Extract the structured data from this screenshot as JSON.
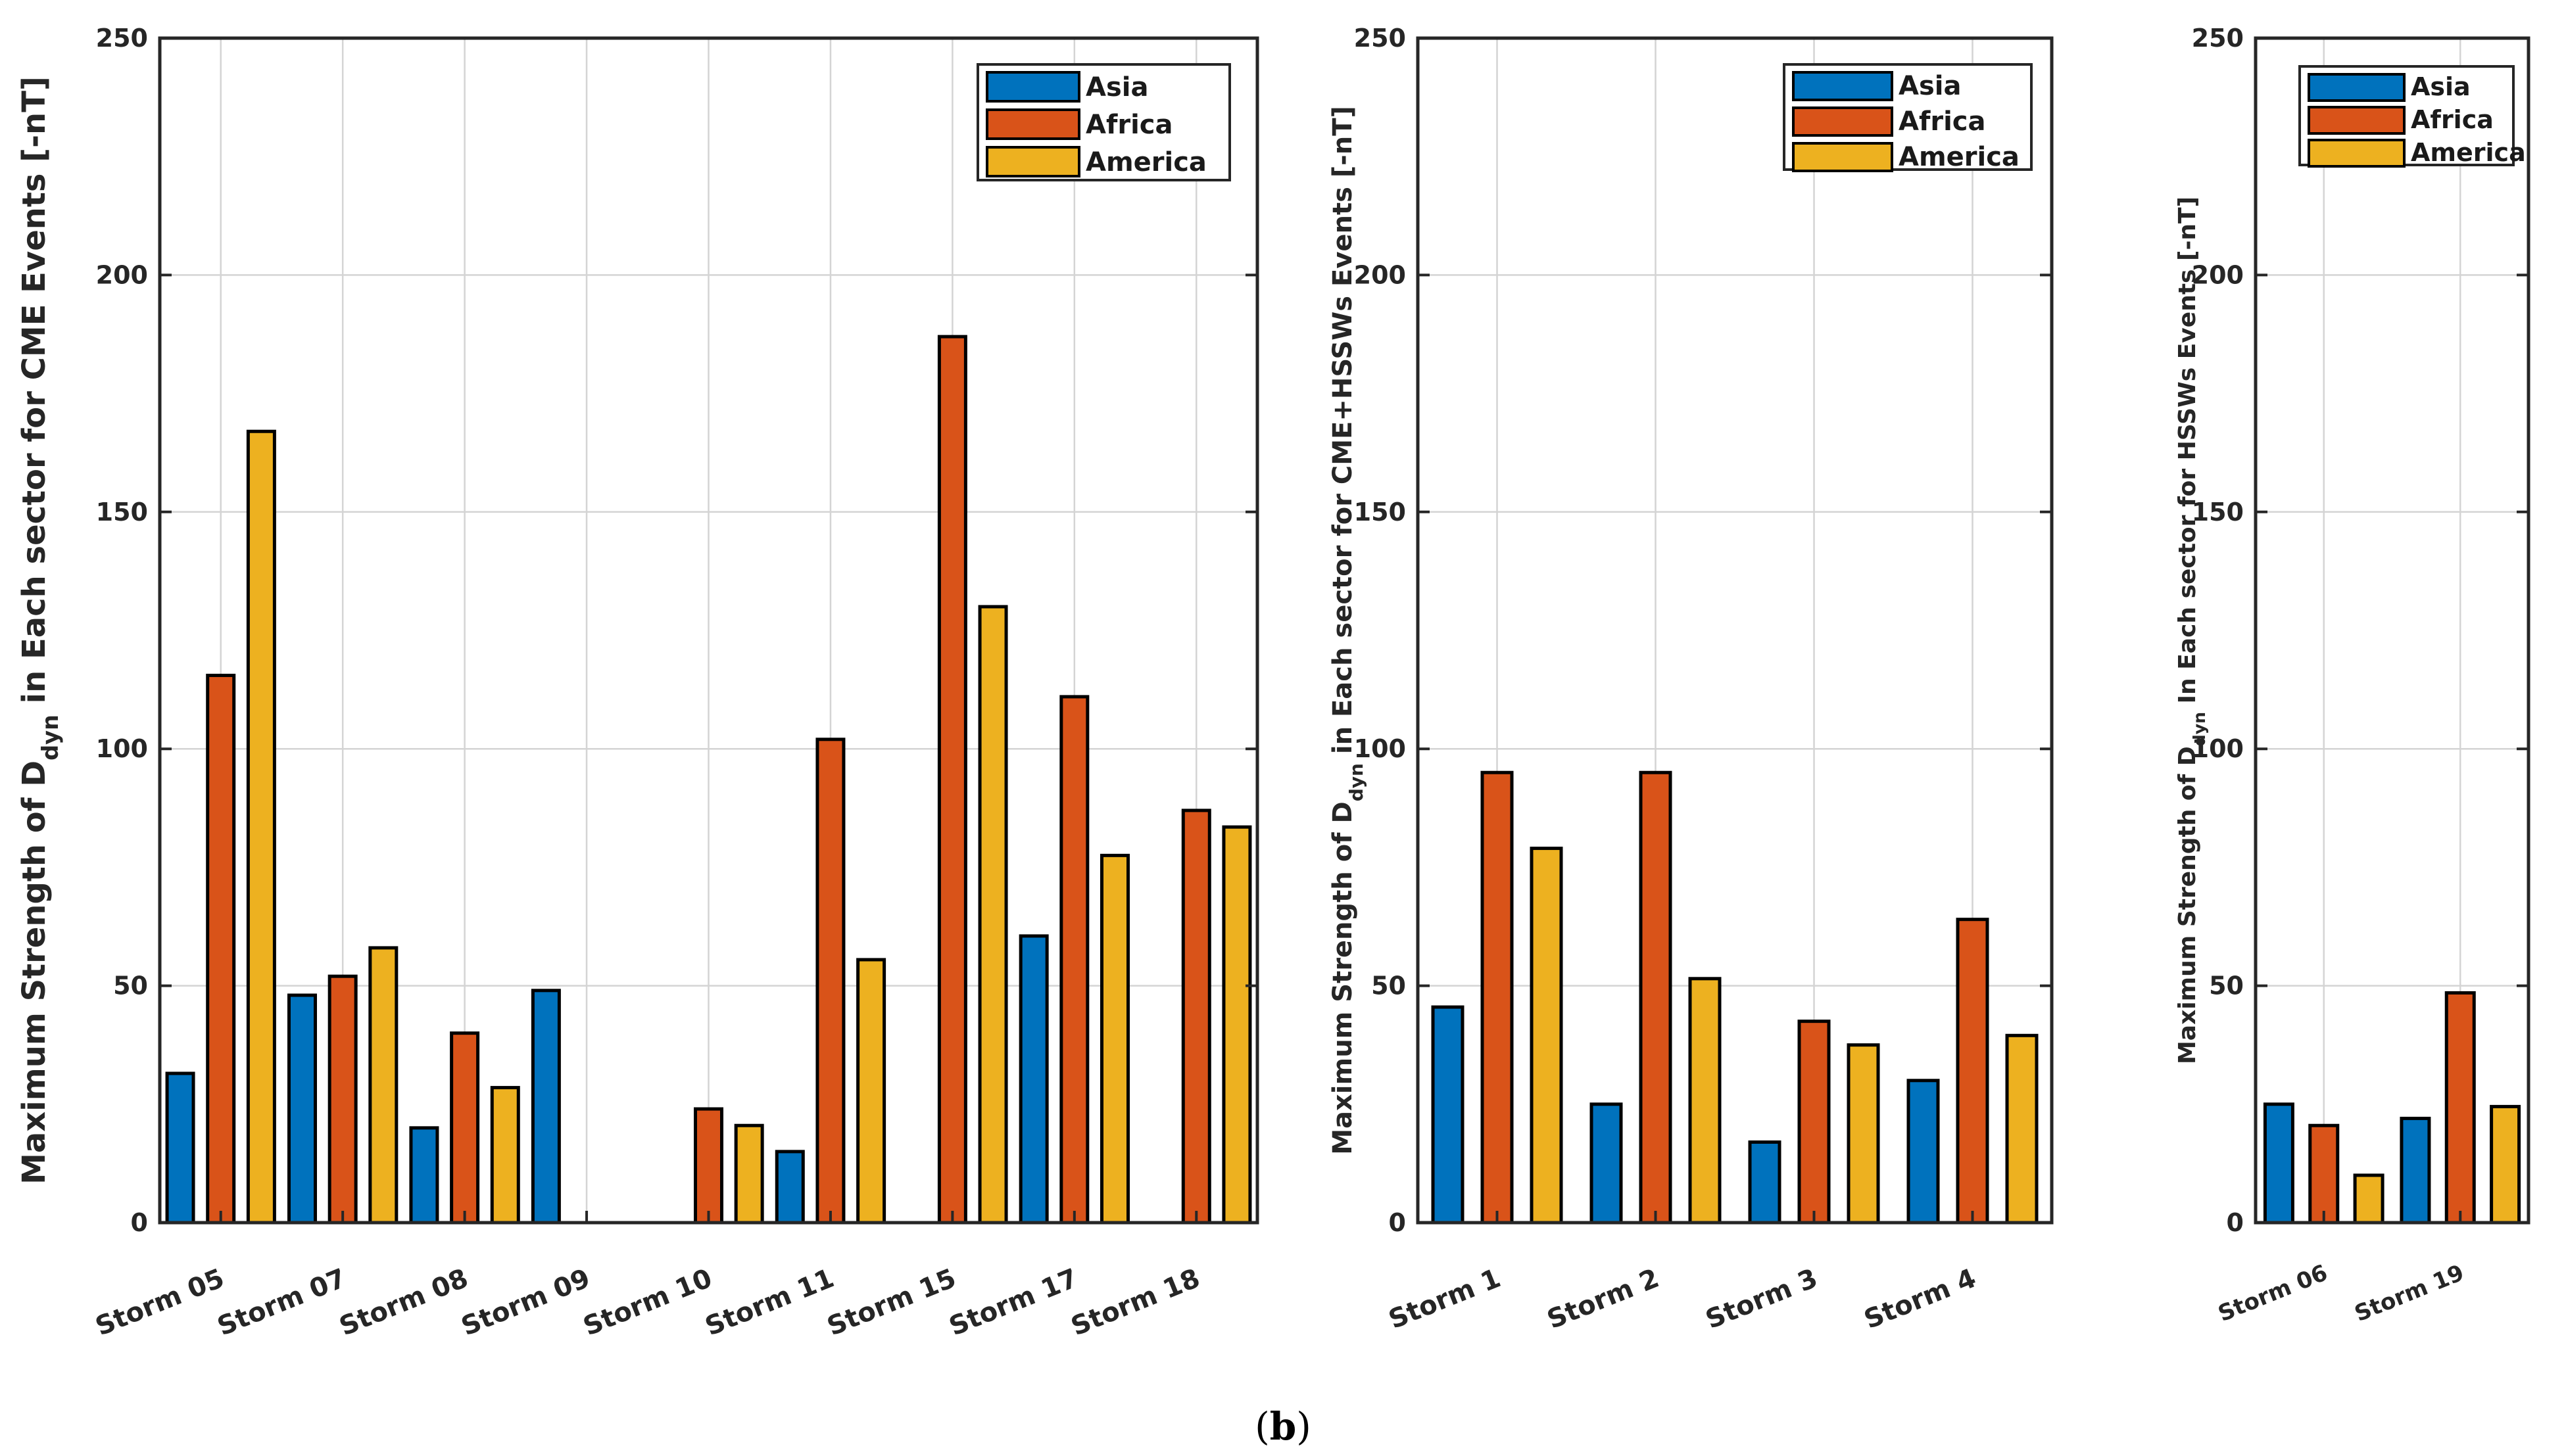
{
  "caption": {
    "open": "(",
    "letter": "b",
    "close": ")"
  },
  "colors": {
    "Asia": "#0072BD",
    "Africa": "#D95319",
    "America": "#EDB120"
  },
  "chart_data": [
    {
      "type": "bar",
      "categories": [
        "Storm 05",
        "Storm 07",
        "Storm 08",
        "Storm 09",
        "Storm 10",
        "Storm 11",
        "Storm 15",
        "Storm 17",
        "Storm 18"
      ],
      "series": [
        {
          "name": "Asia",
          "values": [
            31.5,
            48,
            20,
            49,
            0,
            15,
            0,
            60.5,
            0
          ]
        },
        {
          "name": "Africa",
          "values": [
            115.5,
            52,
            40,
            0,
            24,
            102,
            187,
            111,
            87
          ]
        },
        {
          "name": "America",
          "values": [
            167,
            58,
            28.5,
            0,
            20.5,
            55.5,
            130,
            77.5,
            83.5
          ]
        }
      ],
      "ylabel_parts": {
        "pre": "Maximum Strength of D",
        "sub": "dyn",
        "post": " in Each sector for CME Events [-nT]"
      },
      "ylim": [
        0,
        250
      ],
      "yticks": [
        0,
        50,
        100,
        150,
        200,
        250
      ],
      "legend": [
        "Asia",
        "Africa",
        "America"
      ],
      "legend_position": "top-right",
      "grid": true
    },
    {
      "type": "bar",
      "categories": [
        "Storm 1",
        "Storm 2",
        "Storm 3",
        "Storm 4"
      ],
      "series": [
        {
          "name": "Asia",
          "values": [
            45.5,
            25,
            17,
            30
          ]
        },
        {
          "name": "Africa",
          "values": [
            95,
            95,
            42.5,
            64
          ]
        },
        {
          "name": "America",
          "values": [
            79,
            51.5,
            37.5,
            39.5
          ]
        }
      ],
      "ylabel_parts": {
        "pre": "Maximum Strength of D",
        "sub": "dyn",
        "post": " in Each sector for CME+HSSWs Events [-nT]"
      },
      "ylim": [
        0,
        250
      ],
      "yticks": [
        0,
        50,
        100,
        150,
        200,
        250
      ],
      "legend": [
        "Asia",
        "Africa",
        "America"
      ],
      "legend_position": "top-right",
      "grid": true
    },
    {
      "type": "bar",
      "categories": [
        "Storm 06",
        "Storm 19"
      ],
      "series": [
        {
          "name": "Asia",
          "values": [
            25,
            22
          ]
        },
        {
          "name": "Africa",
          "values": [
            20.5,
            48.5
          ]
        },
        {
          "name": "America",
          "values": [
            10,
            24.5
          ]
        }
      ],
      "ylabel_parts": {
        "pre": "Maximum Strength of D",
        "sub": "dyn",
        "post": " In Each sector for HSSWs Events [-nT]"
      },
      "ylim": [
        0,
        250
      ],
      "yticks": [
        0,
        50,
        100,
        150,
        200,
        250
      ],
      "legend": [
        "Asia",
        "Africa",
        "America"
      ],
      "legend_position": "top-right",
      "grid": true
    }
  ]
}
